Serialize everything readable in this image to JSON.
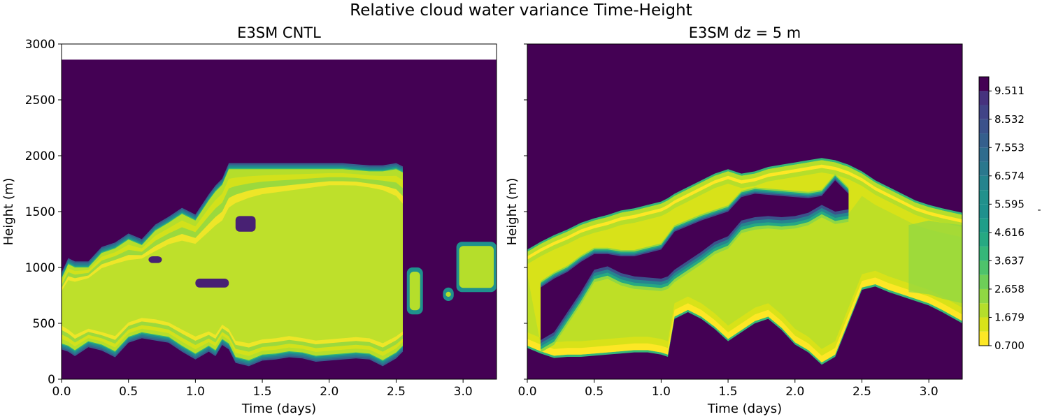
{
  "figure_title": "Relative cloud water variance Time-Height",
  "chart_data": [
    {
      "type": "heatmap",
      "subtype": "filled-contour",
      "title": "E3SM CNTL",
      "xlabel": "Time (days)",
      "ylabel": "Height (m)",
      "xlim": [
        0.0,
        3.25
      ],
      "ylim": [
        0,
        3000
      ],
      "xticks": [
        "0.0",
        "0.5",
        "1.0",
        "1.5",
        "2.0",
        "2.5",
        "3.0"
      ],
      "yticks": [
        "0",
        "500",
        "1000",
        "1500",
        "2000",
        "2500",
        "3000"
      ],
      "data_top_m": 2860,
      "cloud_layer_boundaries": {
        "time_days": [
          0.0,
          0.05,
          0.1,
          0.2,
          0.3,
          0.4,
          0.5,
          0.6,
          0.7,
          0.8,
          0.9,
          1.0,
          1.1,
          1.15,
          1.2,
          1.25,
          1.3,
          1.4,
          1.5,
          1.6,
          1.7,
          1.8,
          1.9,
          2.0,
          2.1,
          2.2,
          2.3,
          2.4,
          2.5,
          2.55
        ],
        "top_m": [
          900,
          1030,
          1000,
          1000,
          1130,
          1170,
          1250,
          1200,
          1330,
          1400,
          1480,
          1420,
          1600,
          1680,
          1740,
          1880,
          1880,
          1880,
          1880,
          1880,
          1880,
          1880,
          1880,
          1880,
          1880,
          1870,
          1860,
          1860,
          1880,
          1850
        ],
        "bottom_m": [
          320,
          300,
          260,
          340,
          310,
          250,
          380,
          420,
          400,
          380,
          300,
          230,
          300,
          260,
          360,
          320,
          200,
          170,
          220,
          230,
          250,
          240,
          210,
          220,
          230,
          240,
          230,
          170,
          240,
          300
        ],
        "core_top_m": [
          760,
          850,
          840,
          880,
          960,
          1000,
          1020,
          1050,
          1100,
          1160,
          1180,
          1160,
          1250,
          1300,
          1340,
          1450,
          1500,
          1560,
          1600,
          1620,
          1640,
          1660,
          1680,
          1700,
          1700,
          1700,
          1680,
          1650,
          1580,
          1500
        ],
        "core_bottom_m": [
          520,
          480,
          430,
          480,
          450,
          420,
          540,
          580,
          570,
          540,
          480,
          420,
          460,
          430,
          520,
          480,
          380,
          360,
          390,
          400,
          420,
          400,
          380,
          390,
          400,
          410,
          400,
          360,
          420,
          460
        ]
      },
      "late_patches": [
        {
          "time_days": [
            2.58,
            2.7
          ],
          "height_m": [
            580,
            1000
          ]
        },
        {
          "time_days": [
            2.85,
            2.93
          ],
          "height_m": [
            700,
            820
          ]
        },
        {
          "time_days": [
            2.95,
            3.25
          ],
          "height_m": [
            780,
            1230
          ]
        }
      ]
    },
    {
      "type": "heatmap",
      "subtype": "filled-contour",
      "title": "E3SM dz = 5 m",
      "xlabel": "Time (days)",
      "ylabel": "Height (m)",
      "xlim": [
        0.0,
        3.25
      ],
      "ylim": [
        0,
        3000
      ],
      "xticks": [
        "0.0",
        "0.5",
        "1.0",
        "1.5",
        "2.0",
        "2.5",
        "3.0"
      ],
      "yticks": [
        "0",
        "500",
        "1000",
        "1500",
        "2000",
        "2500",
        "3000"
      ],
      "data_top_m": 3000,
      "cloud_envelope": {
        "time_days": [
          0.0,
          0.1,
          0.2,
          0.3,
          0.4,
          0.5,
          0.6,
          0.7,
          0.8,
          0.9,
          1.0,
          1.05,
          1.1,
          1.2,
          1.3,
          1.4,
          1.5,
          1.6,
          1.7,
          1.8,
          1.9,
          2.0,
          2.1,
          2.2,
          2.3,
          2.4,
          2.5,
          2.6,
          2.7,
          2.8,
          2.9,
          3.0,
          3.1,
          3.25
        ],
        "top_m": [
          1140,
          1210,
          1270,
          1320,
          1380,
          1420,
          1450,
          1490,
          1510,
          1540,
          1570,
          1600,
          1640,
          1700,
          1760,
          1820,
          1860,
          1820,
          1840,
          1880,
          1900,
          1920,
          1940,
          1960,
          1940,
          1900,
          1840,
          1760,
          1700,
          1640,
          1580,
          1540,
          1510,
          1470
        ],
        "bottom_m": [
          300,
          250,
          210,
          220,
          220,
          230,
          240,
          250,
          260,
          260,
          240,
          220,
          560,
          620,
          560,
          470,
          360,
          440,
          520,
          560,
          460,
          330,
          260,
          150,
          220,
          520,
          820,
          850,
          800,
          760,
          720,
          680,
          620,
          520
        ],
        "hole_top_m": [
          null,
          820,
          900,
          960,
          1050,
          1120,
          1120,
          1100,
          1100,
          1130,
          1160,
          1240,
          1320,
          1370,
          1420,
          1460,
          1500,
          1630,
          1660,
          1650,
          1640,
          1630,
          1620,
          1640,
          1780,
          1660,
          null,
          null,
          null,
          null,
          null,
          null,
          null,
          null
        ],
        "hole_bottom_m": [
          null,
          350,
          420,
          600,
          780,
          980,
          1010,
          950,
          920,
          910,
          900,
          920,
          980,
          1060,
          1140,
          1230,
          1280,
          1420,
          1450,
          1460,
          1450,
          1460,
          1490,
          1560,
          1500,
          1520,
          null,
          null,
          null,
          null,
          null,
          null,
          null,
          null
        ]
      }
    }
  ],
  "colorbar": {
    "levels": [
      0.7,
      1.19,
      1.679,
      2.169,
      2.658,
      3.148,
      3.637,
      4.127,
      4.616,
      5.105,
      5.595,
      6.084,
      6.574,
      7.063,
      7.553,
      8.042,
      8.532,
      9.021,
      9.511,
      10.0
    ],
    "colors": [
      "#fde725",
      "#d8e219",
      "#b5de2b",
      "#90d743",
      "#6ece58",
      "#4ec36b",
      "#35b779",
      "#26a982",
      "#1f9e89",
      "#1f918d",
      "#21918c",
      "#25848e",
      "#2a788e",
      "#2f6c8e",
      "#355f8d",
      "#3b528b",
      "#414487",
      "#46327e",
      "#482173",
      "#440154"
    ],
    "ticklabels": [
      "0.700",
      "1.679",
      "2.658",
      "3.637",
      "4.616",
      "5.595",
      "6.574",
      "7.553",
      "8.532",
      "9.511"
    ],
    "label": "-"
  }
}
